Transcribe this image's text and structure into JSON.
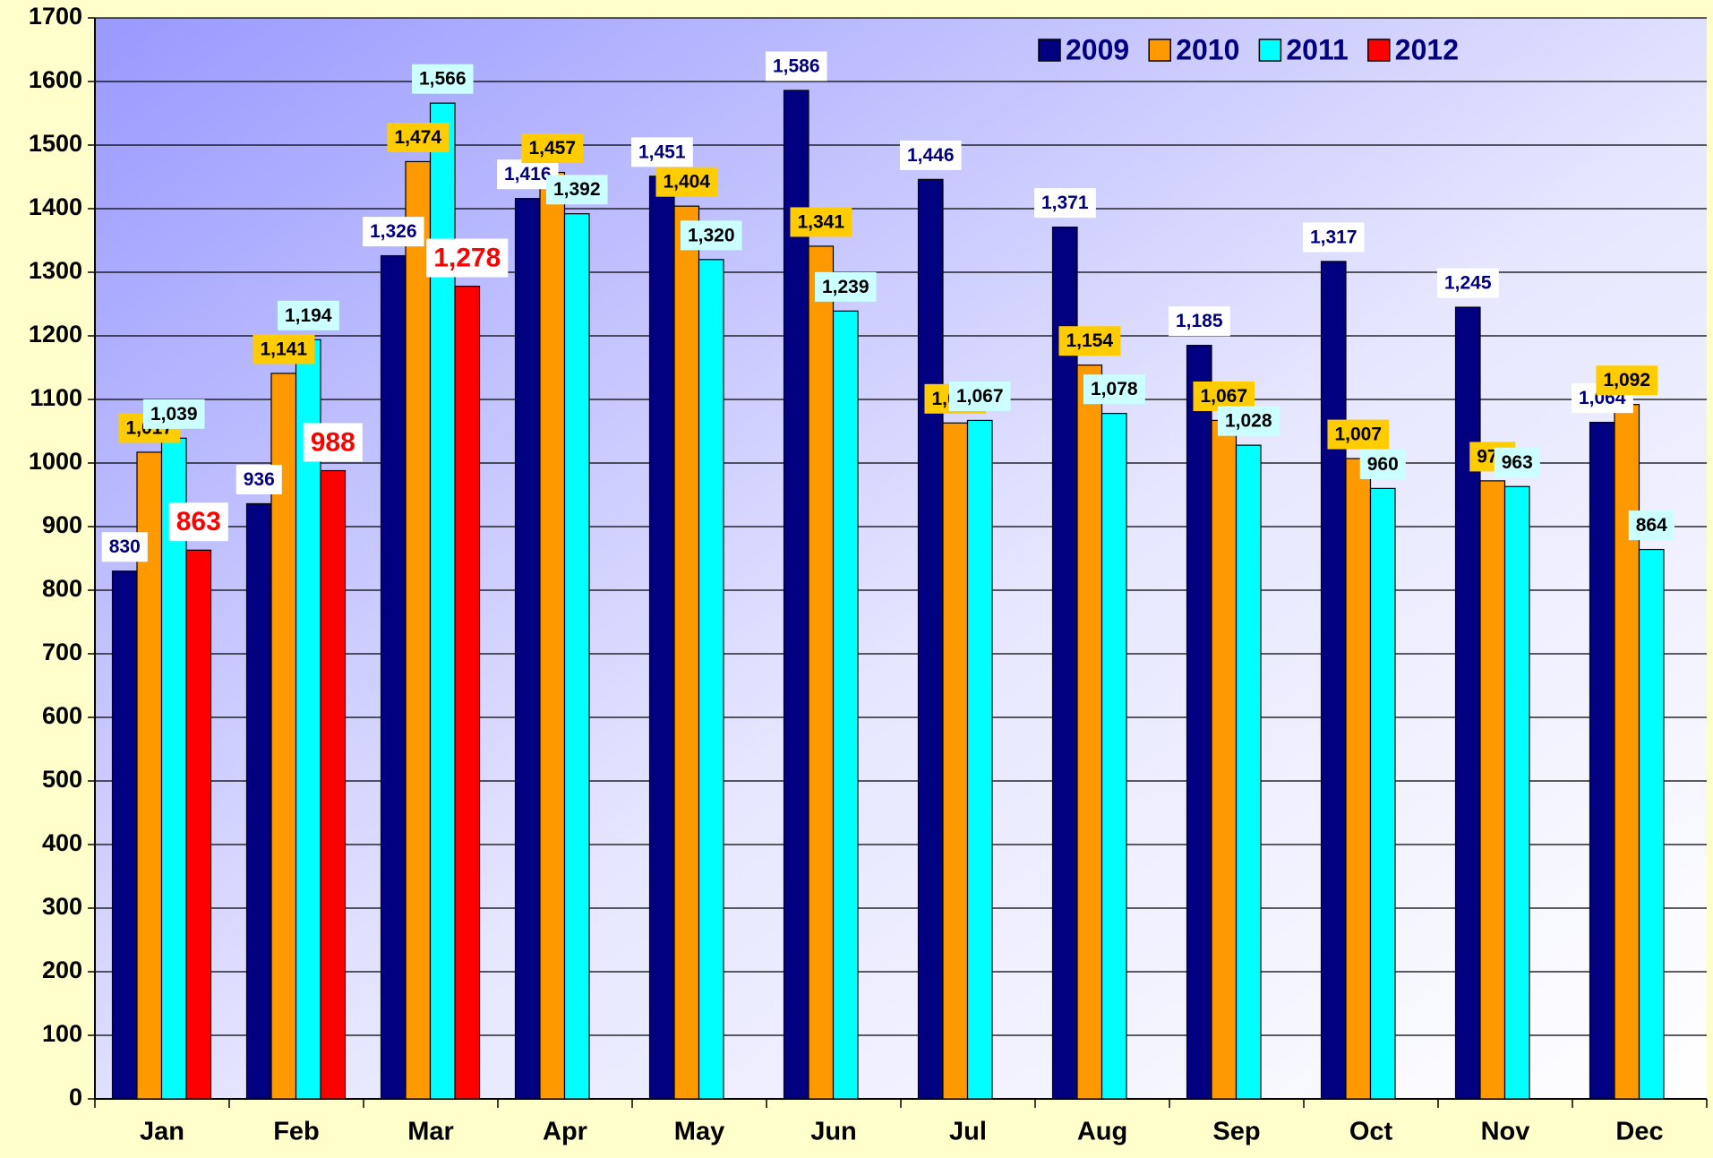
{
  "chart_data": {
    "type": "bar",
    "categories": [
      "Jan",
      "Feb",
      "Mar",
      "Apr",
      "May",
      "Jun",
      "Jul",
      "Aug",
      "Sep",
      "Oct",
      "Nov",
      "Dec"
    ],
    "series": [
      {
        "name": "2009",
        "color": "#000080",
        "label_box": "#ffffff",
        "label_color": "#000080",
        "values": [
          830,
          936,
          1326,
          1416,
          1451,
          1586,
          1446,
          1371,
          1185,
          1317,
          1245,
          1064
        ],
        "value_labels": [
          "830",
          "936",
          "1,326",
          "1,416",
          "1,451",
          "1,586",
          "1,446",
          "1,371",
          "1,185",
          "1,317",
          "1,245",
          "1,064"
        ]
      },
      {
        "name": "2010",
        "color": "#ff9900",
        "label_box": "#ffcc00",
        "label_color": "#000000",
        "values": [
          1017,
          1141,
          1474,
          1457,
          1404,
          1341,
          1063,
          1154,
          1067,
          1007,
          972,
          1092
        ],
        "value_labels": [
          "1,017",
          "1,141",
          "1,474",
          "1,457",
          "1,404",
          "1,341",
          "1,063",
          "1,154",
          "1,067",
          "1,007",
          "972",
          "1,092"
        ]
      },
      {
        "name": "2011",
        "color": "#00ffff",
        "label_box": "#ccffff",
        "label_color": "#000000",
        "values": [
          1039,
          1194,
          1566,
          1392,
          1320,
          1239,
          1067,
          1078,
          1028,
          960,
          963,
          864
        ],
        "value_labels": [
          "1,039",
          "1,194",
          "1,566",
          "1,392",
          "1,320",
          "1,239",
          "1,067",
          "1,078",
          "1,028",
          "960",
          "963",
          "864"
        ]
      },
      {
        "name": "2012",
        "color": "#ff0000",
        "label_box": "#ffffff",
        "label_color": "#ff0000",
        "values": [
          863,
          988,
          1278,
          null,
          null,
          null,
          null,
          null,
          null,
          null,
          null,
          null
        ],
        "value_labels": [
          "863",
          "988",
          "1,278",
          null,
          null,
          null,
          null,
          null,
          null,
          null,
          null,
          null
        ]
      }
    ],
    "ylim": [
      0,
      1700
    ],
    "yticks": [
      0,
      100,
      200,
      300,
      400,
      500,
      600,
      700,
      800,
      900,
      1000,
      1100,
      1200,
      1300,
      1400,
      1500,
      1600,
      1700
    ],
    "grid": true,
    "legend": "top-right"
  }
}
